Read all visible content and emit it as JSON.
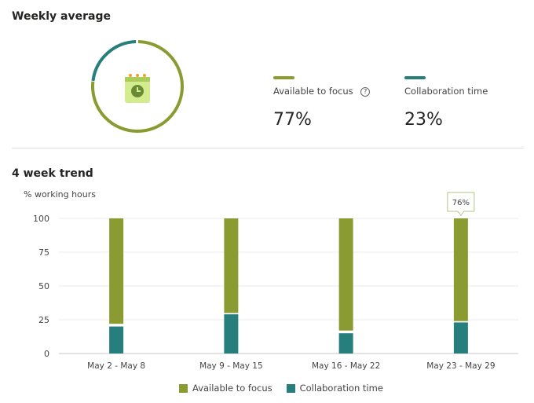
{
  "weekly": {
    "title": "Weekly average",
    "focus_label": "Available to focus",
    "focus_value": "77%",
    "collab_label": "Collaboration time",
    "collab_value": "23%",
    "focus_fraction": 0.77,
    "collab_fraction": 0.23,
    "icon": "calendar-clock-icon",
    "help_icon": "question-circle-icon"
  },
  "colors": {
    "focus": "#8a9b31",
    "collab": "#267f7c"
  },
  "chart_data": {
    "type": "bar",
    "stacked": true,
    "title": "4 week trend",
    "ylabel": "% working hours",
    "ylim": [
      0,
      100
    ],
    "yticks": [
      "0",
      "25",
      "50",
      "75",
      "100"
    ],
    "grid": true,
    "legend_position": "bottom",
    "categories": [
      "May 2 - May 8",
      "May 9 - May 15",
      "May 16 - May 22",
      "May 23 - May 29"
    ],
    "series": [
      {
        "name": "Available to focus",
        "values": [
          78,
          70,
          83,
          76
        ]
      },
      {
        "name": "Collaboration time",
        "values": [
          20,
          29,
          15,
          23
        ]
      }
    ],
    "tooltip": {
      "category": "May 23 - May 29",
      "text": "76%"
    }
  }
}
